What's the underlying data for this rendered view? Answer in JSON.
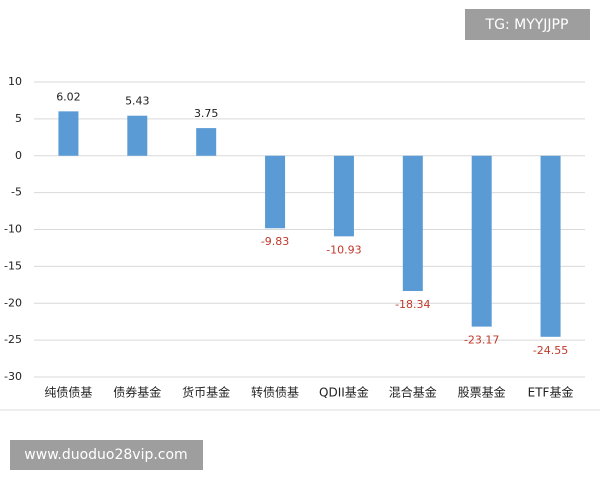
{
  "chart_data": {
    "type": "bar",
    "categories": [
      "纯债债基",
      "债券基金",
      "货币基金",
      "转债债基",
      "QDII基金",
      "混合基金",
      "股票基金",
      "ETF基金"
    ],
    "values": [
      6.02,
      5.43,
      3.75,
      -9.83,
      -10.93,
      -18.34,
      -23.17,
      -24.55
    ],
    "color": "#5b9bd5",
    "value_label_color": "#222222",
    "negative_value_label_color": "#c0392b",
    "ylim": [
      -30,
      10
    ],
    "yticks": [
      10,
      5,
      0,
      -5,
      -10,
      -15,
      -20,
      -25,
      -30
    ],
    "grid": true
  },
  "watermarks": {
    "top": "TG: MYYJJPP",
    "bottom": "www.duoduo28vip.com"
  }
}
